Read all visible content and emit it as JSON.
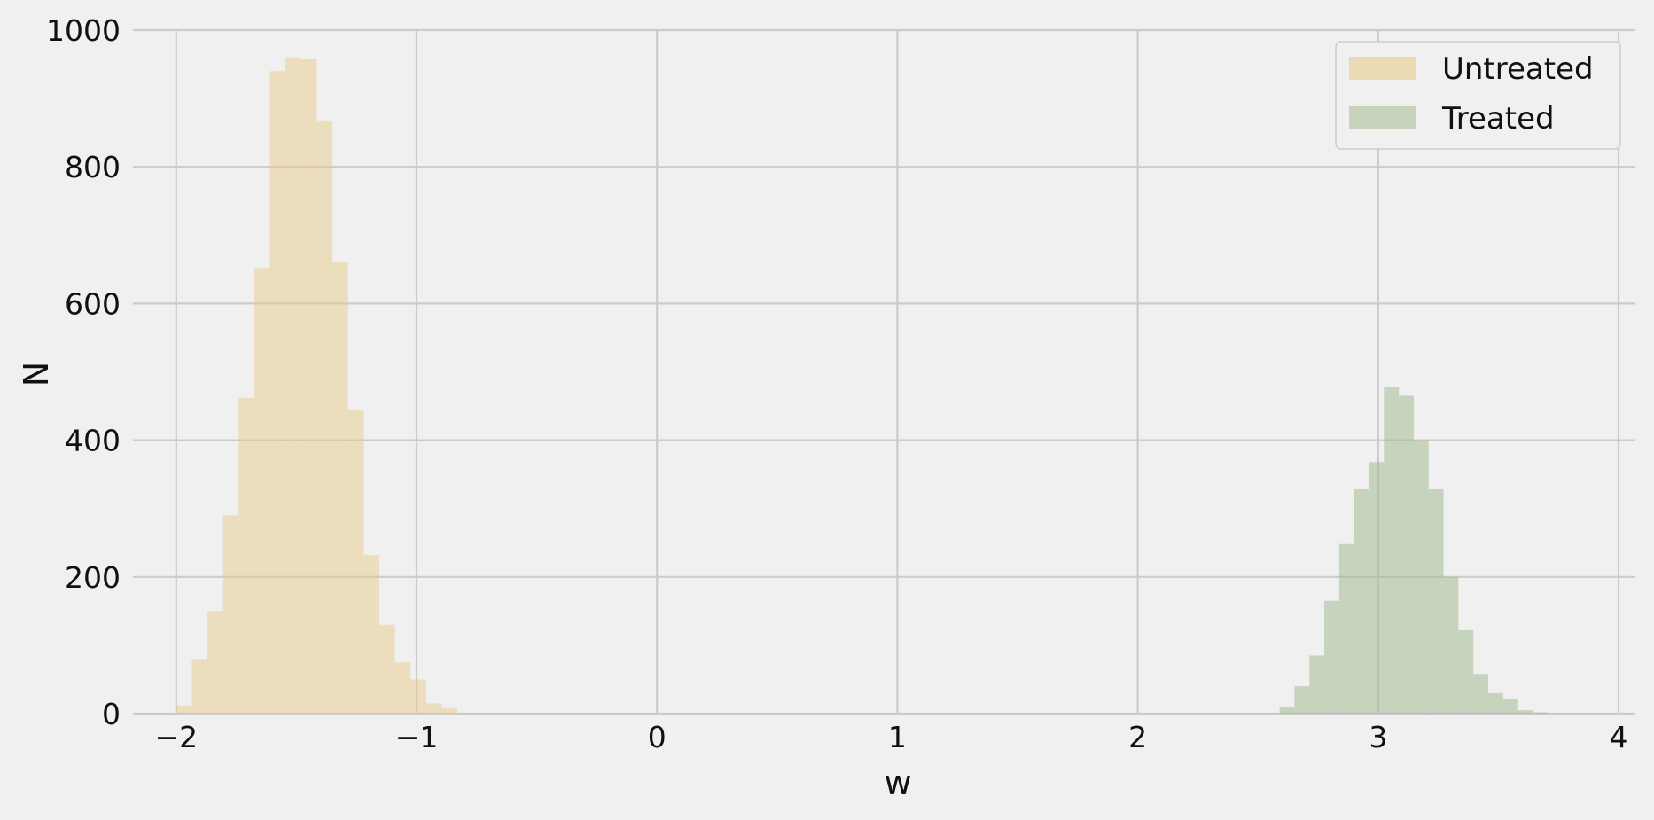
{
  "chart_data": {
    "type": "bar",
    "title": "",
    "xlabel": "w",
    "ylabel": "N",
    "xlim": [
      -2.18,
      4.07
    ],
    "ylim": [
      0,
      1000
    ],
    "xticks": [
      -2,
      -1,
      0,
      1,
      2,
      3,
      4
    ],
    "xtick_labels": [
      "−2",
      "−1",
      "0",
      "1",
      "2",
      "3",
      "4"
    ],
    "yticks": [
      0,
      200,
      400,
      600,
      800,
      1000
    ],
    "ytick_labels": [
      "0",
      "200",
      "400",
      "600",
      "800",
      "1000"
    ],
    "grid": true,
    "legend_position": "top-right",
    "series": [
      {
        "name": "Untreated",
        "color": "#e8c98a",
        "opacity": 0.5,
        "bin_width": 0.065,
        "bin_left": [
          -2.0,
          -1.935,
          -1.87,
          -1.805,
          -1.74,
          -1.675,
          -1.61,
          -1.545,
          -1.48,
          -1.415,
          -1.35,
          -1.285,
          -1.22,
          -1.155,
          -1.09,
          -1.025,
          -0.96,
          -0.895
        ],
        "counts": [
          12,
          80,
          150,
          290,
          462,
          652,
          940,
          960,
          958,
          868,
          660,
          445,
          232,
          130,
          75,
          50,
          15,
          8
        ]
      },
      {
        "name": "Treated",
        "color": "#a4bc94",
        "opacity": 0.55,
        "bin_width": 0.062,
        "bin_left": [
          2.59,
          2.652,
          2.714,
          2.776,
          2.838,
          2.9,
          2.962,
          3.024,
          3.086,
          3.148,
          3.21,
          3.272,
          3.334,
          3.396,
          3.458,
          3.52,
          3.582,
          3.644
        ],
        "counts": [
          10,
          40,
          85,
          165,
          248,
          328,
          368,
          478,
          465,
          400,
          328,
          200,
          122,
          58,
          30,
          22,
          5,
          2
        ]
      }
    ]
  }
}
